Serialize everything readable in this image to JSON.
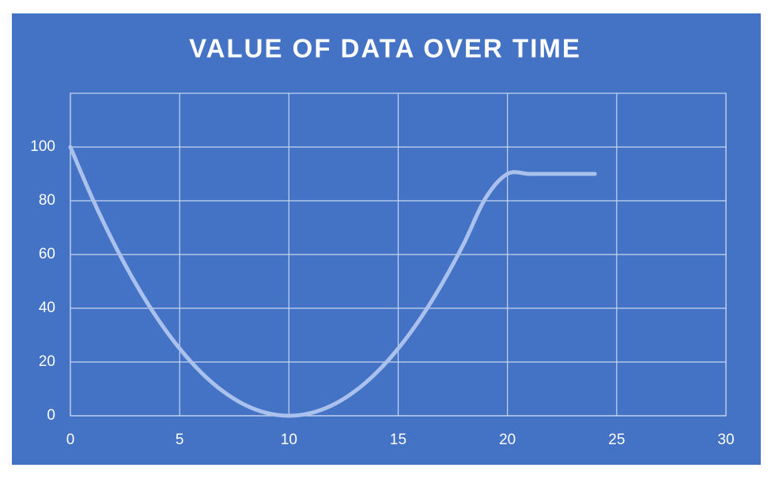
{
  "chart_data": {
    "type": "line",
    "title": "VALUE OF DATA OVER TIME",
    "x": [
      0,
      1,
      2,
      3,
      4,
      5,
      6,
      7,
      8,
      9,
      10,
      11,
      12,
      13,
      14,
      15,
      16,
      17,
      18,
      19,
      20,
      21,
      22,
      23,
      24
    ],
    "series": [
      {
        "color": "#a9c1ec",
        "values": [
          100,
          81,
          64,
          49,
          36,
          25,
          16,
          9,
          4,
          1,
          0,
          1,
          4,
          9,
          16,
          25,
          36,
          49,
          64,
          81,
          90,
          90,
          90,
          90,
          90
        ]
      }
    ],
    "xlim": [
      0,
      30
    ],
    "xticks": [
      0,
      5,
      10,
      15,
      20,
      25,
      30
    ],
    "ylim": [
      0,
      120
    ],
    "yticks": [
      0,
      20,
      40,
      60,
      80,
      100
    ],
    "grid": true,
    "smooth": true
  }
}
